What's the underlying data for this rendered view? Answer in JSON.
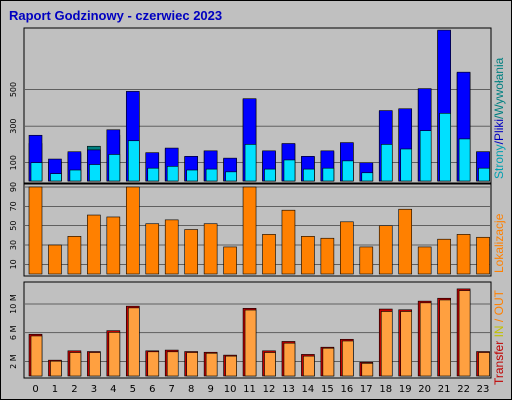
{
  "title": "Raport Godzinowy -  czerwiec 2023",
  "colors": {
    "background": "#c0c0c0",
    "title": "#0000c0",
    "strony": "#00e0ff",
    "pliki": "#0000ff",
    "wywolania": "#008080",
    "lokalizacje": "#ff8000",
    "transfer_in": "#c0c000",
    "transfer_out": "#ffa040",
    "transfer": "#c00000"
  },
  "chart_data": [
    {
      "type": "bar",
      "panel": "requests",
      "categories": [
        "0",
        "1",
        "2",
        "3",
        "4",
        "5",
        "6",
        "7",
        "8",
        "9",
        "10",
        "11",
        "12",
        "13",
        "14",
        "15",
        "16",
        "17",
        "18",
        "19",
        "20",
        "21",
        "22",
        "23"
      ],
      "ylim": [
        0,
        820
      ],
      "yticks": [
        100,
        300,
        500
      ],
      "right_label": {
        "strony": "Strony",
        "sep1": "/",
        "pliki": "Pliki",
        "sep2": "/",
        "wywolania": "Wywołania"
      },
      "series": [
        {
          "name": "Wywołania",
          "values": [
            205,
            105,
            150,
            190,
            250,
            480,
            150,
            175,
            130,
            165,
            120,
            445,
            160,
            200,
            130,
            160,
            205,
            95,
            380,
            390,
            500,
            820,
            590,
            160
          ]
        },
        {
          "name": "Pliki",
          "values": [
            250,
            120,
            160,
            170,
            280,
            490,
            155,
            180,
            135,
            165,
            125,
            450,
            165,
            205,
            135,
            165,
            210,
            100,
            385,
            395,
            505,
            825,
            595,
            160
          ]
        },
        {
          "name": "Strony",
          "values": [
            100,
            40,
            60,
            90,
            145,
            220,
            70,
            80,
            60,
            65,
            50,
            200,
            65,
            115,
            65,
            70,
            110,
            45,
            200,
            175,
            275,
            370,
            230,
            70
          ]
        }
      ]
    },
    {
      "type": "bar",
      "panel": "lokalizacje",
      "categories": [
        "0",
        "1",
        "2",
        "3",
        "4",
        "5",
        "6",
        "7",
        "8",
        "9",
        "10",
        "11",
        "12",
        "13",
        "14",
        "15",
        "16",
        "17",
        "18",
        "19",
        "20",
        "21",
        "22",
        "23"
      ],
      "ylim": [
        0,
        90
      ],
      "yticks": [
        10,
        30,
        50,
        70,
        90
      ],
      "right_label": "Lokalizacje",
      "series": [
        {
          "name": "Lokalizacje",
          "values": [
            90,
            30,
            39,
            61,
            59,
            90,
            52,
            56,
            46,
            52,
            28,
            90,
            41,
            66,
            39,
            37,
            54,
            28,
            50,
            67,
            28,
            36,
            41,
            38
          ]
        }
      ]
    },
    {
      "type": "bar",
      "panel": "transfer",
      "categories": [
        "0",
        "1",
        "2",
        "3",
        "4",
        "5",
        "6",
        "7",
        "8",
        "9",
        "10",
        "11",
        "12",
        "13",
        "14",
        "15",
        "16",
        "17",
        "18",
        "19",
        "20",
        "21",
        "22",
        "23"
      ],
      "ylim": [
        0,
        12.5
      ],
      "yticks": [
        {
          "value": 2,
          "label": "2 M"
        },
        {
          "value": 6,
          "label": "6 M"
        },
        {
          "value": 10,
          "label": "10 M"
        }
      ],
      "right_label": {
        "transfer": "Transfer",
        "in": "IN",
        "sep": "/",
        "out": "OUT"
      },
      "series": [
        {
          "name": "Transfer",
          "values": [
            5.8,
            2.2,
            3.5,
            3.4,
            6.3,
            9.7,
            3.5,
            3.6,
            3.4,
            3.3,
            2.9,
            9.4,
            3.5,
            4.8,
            3.0,
            4.0,
            5.1,
            1.9,
            9.3,
            9.2,
            10.4,
            10.8,
            12.1,
            3.4
          ]
        },
        {
          "name": "OUT",
          "values": [
            5.7,
            2.2,
            3.4,
            3.4,
            6.2,
            9.6,
            3.5,
            3.5,
            3.4,
            3.3,
            2.9,
            9.3,
            3.4,
            4.7,
            2.9,
            4.0,
            5.0,
            1.9,
            9.1,
            9.1,
            10.3,
            10.7,
            12.0,
            3.4
          ]
        }
      ]
    }
  ]
}
